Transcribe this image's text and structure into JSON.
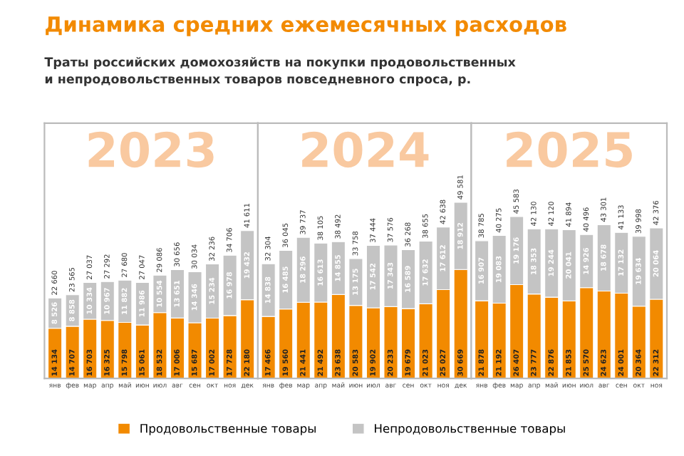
{
  "chart_data": [
    {
      "type": "bar",
      "stacked": true,
      "data_labels": true,
      "tick_labels": "x",
      "legend": "bottom",
      "title": "Динамика средних ежемесячных расходов",
      "subtitle": "Траты российских домохозяйств на покупки продовольственных\nи непродовольственных товаров повседневного спроса, р.",
      "annotations": [
        "2023"
      ],
      "categories": [
        "янв",
        "фев",
        "мар",
        "апр",
        "май",
        "июн",
        "июл",
        "авг",
        "сен",
        "окт",
        "ноя",
        "дек"
      ],
      "series": [
        {
          "name": "Продовольственные товары",
          "color": "#f28a00",
          "values": [
            14134,
            14707,
            16703,
            16325,
            15798,
            15061,
            18532,
            17006,
            15687,
            17002,
            17728,
            22180
          ]
        },
        {
          "name": "Непродовольственные товары",
          "color": "#c4c4c4",
          "values": [
            8526,
            8858,
            10334,
            10967,
            11882,
            11986,
            10554,
            13651,
            14346,
            15234,
            16978,
            19432
          ]
        }
      ],
      "totals": [
        "22 660",
        "23 565",
        "27 037",
        "27 292",
        "27 680",
        "27 047",
        "29 086",
        "30 656",
        "30 034",
        "32 236",
        "34 706",
        "41 611"
      ]
    },
    {
      "type": "bar",
      "stacked": true,
      "data_labels": true,
      "tick_labels": "x",
      "annotations": [
        "2024"
      ],
      "categories": [
        "янв",
        "фев",
        "мар",
        "апр",
        "май",
        "июн",
        "июл",
        "авг",
        "сен",
        "окт",
        "ноя",
        "дек"
      ],
      "series": [
        {
          "color": "#f28a00",
          "values": [
            17466,
            19560,
            21441,
            21492,
            23638,
            20583,
            19902,
            20233,
            19679,
            21023,
            25027,
            30669
          ]
        },
        {
          "color": "#c4c4c4",
          "values": [
            14838,
            16485,
            18296,
            16613,
            14855,
            13175,
            17542,
            17343,
            16589,
            17632,
            17612,
            18912
          ]
        }
      ],
      "totals": [
        "32 304",
        "36 045",
        "39 737",
        "38 105",
        "38 492",
        "33 758",
        "37 444",
        "37 576",
        "36 268",
        "38 655",
        "42 638",
        "49 581"
      ]
    },
    {
      "type": "bar",
      "stacked": true,
      "data_labels": true,
      "tick_labels": "x",
      "annotations": [
        "2025"
      ],
      "categories": [
        "янв",
        "фев",
        "мар",
        "апр",
        "май",
        "июн",
        "июл",
        "авг",
        "сен",
        "окт",
        "ноя"
      ],
      "series": [
        {
          "color": "#f28a00",
          "values": [
            21878,
            21192,
            26407,
            23777,
            22876,
            21853,
            25570,
            24623,
            24001,
            20364,
            22312
          ]
        },
        {
          "color": "#c4c4c4",
          "values": [
            16907,
            19083,
            19176,
            18353,
            19244,
            20041,
            14926,
            18678,
            17132,
            19634,
            20064
          ]
        }
      ],
      "totals": [
        "38 785",
        "40 275",
        "45 583",
        "42 130",
        "42 120",
        "41 894",
        "40 496",
        "43 301",
        "41 133",
        "39 998",
        "42 376"
      ]
    }
  ]
}
